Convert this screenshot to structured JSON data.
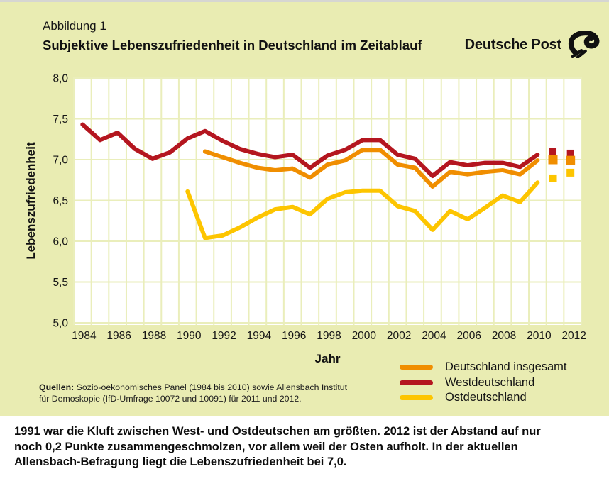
{
  "header": {
    "figure_label": "Abbildung 1",
    "title": "Subjektive Lebenszufriedenheit in Deutschland im Zeitablauf",
    "brand": "Deutsche Post"
  },
  "palette": {
    "background": "#e9ecb2",
    "plot_background": "#ffffff",
    "gridline": "#eaeebb",
    "text": "#111111",
    "caption_background": "#ffffff"
  },
  "chart_data": {
    "type": "line",
    "title": "Subjektive Lebenszufriedenheit in Deutschland im Zeitablauf",
    "xlabel": "Jahr",
    "ylabel": "Lebenszufriedenheit",
    "ylim": [
      5.0,
      8.0
    ],
    "x_range": [
      1983.5,
      2012.5
    ],
    "grid": true,
    "legend_position": "bottom-right",
    "xticks": [
      1984,
      1986,
      1988,
      1990,
      1992,
      1994,
      1996,
      1998,
      2000,
      2002,
      2004,
      2006,
      2008,
      2010,
      2012
    ],
    "yticks": [
      {
        "value": 8.0,
        "label": "8,0"
      },
      {
        "value": 7.5,
        "label": "7,5"
      },
      {
        "value": 7.0,
        "label": "7,0"
      },
      {
        "value": 6.5,
        "label": "6,5"
      },
      {
        "value": 6.0,
        "label": "6,0"
      },
      {
        "value": 5.5,
        "label": "5,5"
      },
      {
        "value": 5.0,
        "label": "5,0"
      }
    ],
    "series": [
      {
        "key": "total",
        "name": "Deutschland insgesamt",
        "color": "#f08e00",
        "years": [
          1991,
          1992,
          1993,
          1994,
          1995,
          1996,
          1997,
          1998,
          1999,
          2000,
          2001,
          2002,
          2003,
          2004,
          2005,
          2006,
          2007,
          2008,
          2009,
          2010
        ],
        "values": [
          7.1,
          7.03,
          6.96,
          6.9,
          6.87,
          6.89,
          6.78,
          6.94,
          6.99,
          7.12,
          7.12,
          6.94,
          6.9,
          6.67,
          6.85,
          6.82,
          6.85,
          6.87,
          6.82,
          6.99
        ],
        "survey_markers": [
          {
            "year": 2011,
            "value": 7.0
          },
          {
            "year": 2012,
            "value": 6.99
          }
        ]
      },
      {
        "key": "west",
        "name": "Westdeutschland",
        "color": "#b4161f",
        "years": [
          1984,
          1985,
          1986,
          1987,
          1988,
          1989,
          1990,
          1991,
          1992,
          1993,
          1994,
          1995,
          1996,
          1997,
          1998,
          1999,
          2000,
          2001,
          2002,
          2003,
          2004,
          2005,
          2006,
          2007,
          2008,
          2009,
          2010
        ],
        "values": [
          7.43,
          7.24,
          7.33,
          7.13,
          7.01,
          7.09,
          7.26,
          7.35,
          7.23,
          7.13,
          7.07,
          7.03,
          7.06,
          6.9,
          7.05,
          7.12,
          7.24,
          7.24,
          7.06,
          7.01,
          6.8,
          6.97,
          6.93,
          6.96,
          6.96,
          6.91,
          7.06
        ],
        "survey_markers": [
          {
            "year": 2011,
            "value": 7.09
          },
          {
            "year": 2012,
            "value": 7.07
          }
        ]
      },
      {
        "key": "ost",
        "name": "Ostdeutschland",
        "color": "#fdc500",
        "years": [
          1990,
          1991,
          1992,
          1993,
          1994,
          1995,
          1996,
          1997,
          1998,
          1999,
          2000,
          2001,
          2002,
          2003,
          2004,
          2005,
          2006,
          2007,
          2008,
          2009,
          2010
        ],
        "values": [
          6.61,
          6.04,
          6.07,
          6.17,
          6.29,
          6.39,
          6.42,
          6.33,
          6.52,
          6.6,
          6.62,
          6.62,
          6.43,
          6.37,
          6.14,
          6.37,
          6.27,
          6.41,
          6.56,
          6.48,
          6.72
        ],
        "survey_markers": [
          {
            "year": 2011,
            "value": 6.77
          },
          {
            "year": 2012,
            "value": 6.84
          }
        ]
      }
    ]
  },
  "source": {
    "label": "Quellen:",
    "line1": "Sozio-oekonomisches Panel (1984 bis 2010) sowie Allensbach Institut",
    "line2": "für Demoskopie (IfD-Umfrage 10072 und 10091) für 2011 und 2012."
  },
  "caption": {
    "lines": [
      "1991 war die Kluft zwischen West- und Ostdeutschen am größten. 2012 ist der Abstand auf nur",
      "noch 0,2 Punkte zusammengeschmolzen, vor allem weil der Osten aufholt. In der aktuellen",
      "Allensbach-Befragung liegt die Lebenszufriedenheit bei 7,0."
    ]
  }
}
